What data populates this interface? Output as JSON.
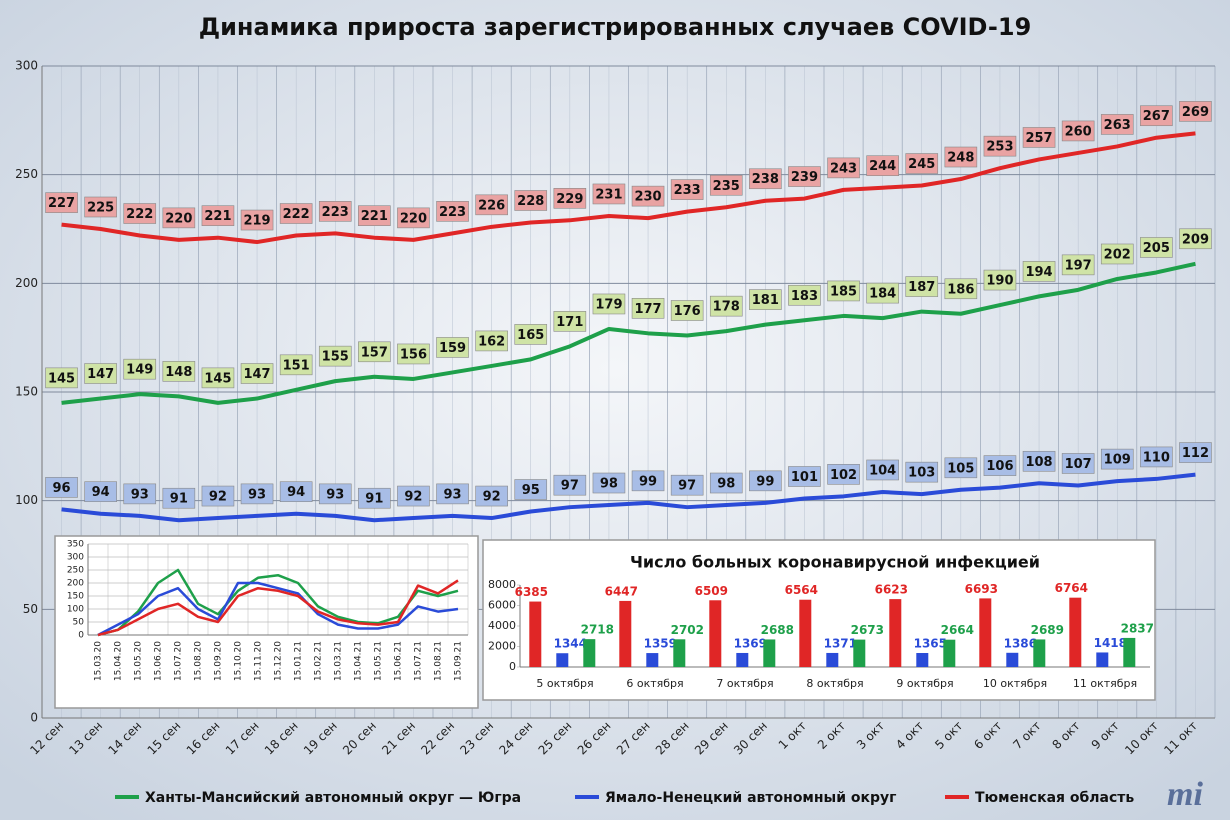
{
  "logo": "mi",
  "chart_data": [
    {
      "type": "line",
      "title": "Динамика прироста зарегистрированных случаев COVID-19",
      "categories": [
        "12 сен",
        "13 сен",
        "14 сен",
        "15 сен",
        "16 сен",
        "17 сен",
        "18 сен",
        "19 сен",
        "20 сен",
        "21 сен",
        "22 сен",
        "23 сен",
        "24 сен",
        "25 сен",
        "26 сен",
        "27 сен",
        "28 сен",
        "29 сен",
        "30 сен",
        "1 окт",
        "2 окт",
        "3 окт",
        "4 окт",
        "5 окт",
        "6 окт",
        "7 окт",
        "8 окт",
        "9 окт",
        "10 окт",
        "11 окт"
      ],
      "series": [
        {
          "name": "Ханты-Мансийский автономный округ — Югра",
          "color": "#1ea04a",
          "values": [
            145,
            147,
            149,
            148,
            145,
            147,
            151,
            155,
            157,
            156,
            159,
            162,
            165,
            171,
            179,
            177,
            176,
            178,
            181,
            183,
            185,
            184,
            187,
            186,
            190,
            194,
            197,
            202,
            205,
            209
          ]
        },
        {
          "name": "Ямало-Ненецкий автономный округ",
          "color": "#2a4bd8",
          "values": [
            96,
            94,
            93,
            91,
            92,
            93,
            94,
            93,
            91,
            92,
            93,
            92,
            95,
            97,
            98,
            99,
            97,
            98,
            99,
            101,
            102,
            104,
            103,
            105,
            106,
            108,
            107,
            109,
            110,
            112
          ]
        },
        {
          "name": "Тюменская область",
          "color": "#e02626",
          "values": [
            227,
            225,
            222,
            220,
            221,
            219,
            222,
            223,
            221,
            220,
            223,
            226,
            228,
            229,
            231,
            230,
            233,
            235,
            238,
            239,
            243,
            244,
            245,
            248,
            253,
            257,
            260,
            263,
            267,
            269
          ]
        }
      ],
      "ylim": [
        0,
        300
      ],
      "yticks": [
        0,
        50,
        100,
        150,
        200,
        250,
        300
      ],
      "grid": true,
      "legend": "bottom"
    },
    {
      "type": "line",
      "categories": [
        "15.03.20",
        "15.04.20",
        "15.05.20",
        "15.06.20",
        "15.07.20",
        "15.08.20",
        "15.09.20",
        "15.10.20",
        "15.11.20",
        "15.12.20",
        "15.01.21",
        "15.02.21",
        "15.03.21",
        "15.04.21",
        "15.05.21",
        "15.06.21",
        "15.07.21",
        "15.08.21",
        "15.09.21"
      ],
      "series": [
        {
          "color": "#1ea04a",
          "values": [
            0,
            20,
            90,
            200,
            250,
            120,
            80,
            170,
            220,
            230,
            200,
            110,
            70,
            50,
            45,
            70,
            170,
            150,
            170
          ]
        },
        {
          "color": "#2a4bd8",
          "values": [
            0,
            40,
            80,
            150,
            180,
            100,
            60,
            200,
            200,
            180,
            160,
            80,
            40,
            25,
            25,
            40,
            110,
            90,
            100
          ]
        },
        {
          "color": "#e02626",
          "values": [
            0,
            20,
            60,
            100,
            120,
            70,
            50,
            150,
            180,
            170,
            150,
            90,
            60,
            45,
            40,
            50,
            190,
            160,
            210
          ]
        }
      ],
      "ylim": [
        0,
        350
      ],
      "yticks": [
        0,
        50,
        100,
        150,
        200,
        250,
        300,
        350
      ],
      "grid": true
    },
    {
      "type": "bar",
      "title": "Число больных коронавирусной  инфекцией",
      "categories": [
        "5 октября",
        "6 октября",
        "7 октября",
        "8 октября",
        "9 октября",
        "10 октября",
        "11 октября"
      ],
      "series": [
        {
          "color": "#e02626",
          "values": [
            6385,
            6447,
            6509,
            6564,
            6623,
            6693,
            6764
          ]
        },
        {
          "color": "#2a4bd8",
          "values": [
            1344,
            1359,
            1369,
            1371,
            1365,
            1386,
            1418
          ]
        },
        {
          "color": "#1ea04a",
          "values": [
            2718,
            2702,
            2688,
            2673,
            2664,
            2689,
            2837
          ]
        }
      ],
      "ylim": [
        0,
        8000
      ],
      "yticks": [
        0,
        2000,
        4000,
        6000,
        8000
      ],
      "grid": false
    }
  ]
}
